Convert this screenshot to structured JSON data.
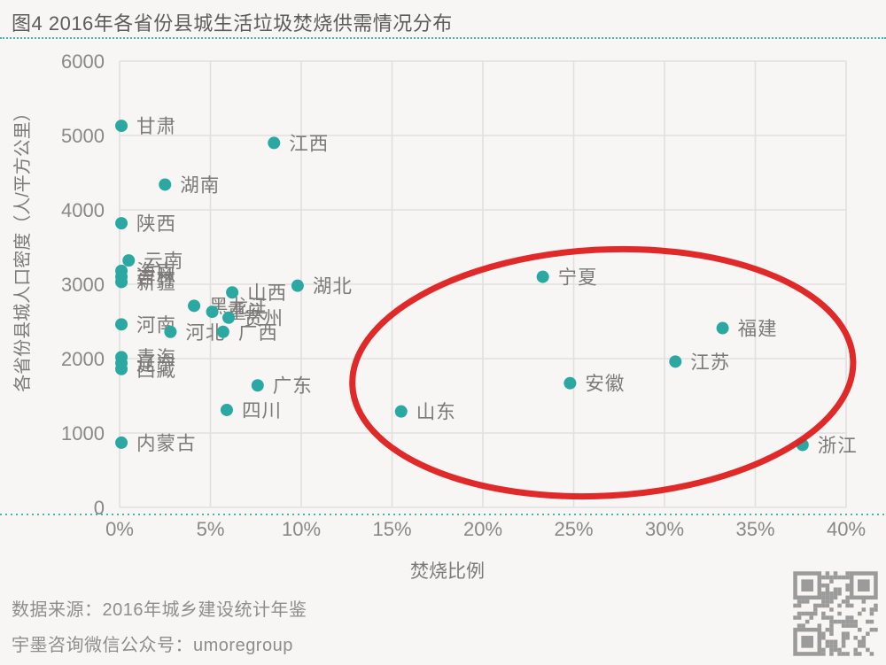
{
  "header": {
    "title": "图4 2016年各省份县城生活垃圾焚烧供需情况分布"
  },
  "footer": {
    "source": "数据来源：2016年城乡建设统计年鉴",
    "wechat": "宇墨咨询微信公众号：umoregroup"
  },
  "icons": {
    "qr_code": "qr-code"
  },
  "colors": {
    "background": "#F7F6F4",
    "dot": "#2BA8A1",
    "grid": "#E2E0DE",
    "tick_text": "#8A8886",
    "label_text": "#7C7A78",
    "axis_title": "#7C7A78",
    "title_text": "#5B5B5B",
    "dotted_rule": "#45B5AE",
    "highlight_red": "#DE1E1E",
    "footer_text": "#8F8D8B",
    "qr": "#9B9B9B"
  },
  "chart_data": {
    "type": "scatter",
    "title": "图4 2016年各省份县城生活垃圾焚烧供需情况分布",
    "xlabel": "焚烧比例",
    "ylabel": "各省份县城人口密度（人/平方公里）",
    "xlim": [
      0,
      40
    ],
    "ylim": [
      0,
      6000
    ],
    "x_unit": "%",
    "grid": true,
    "legend": "none",
    "x_ticks": [
      0,
      5,
      10,
      15,
      20,
      25,
      30,
      35,
      40
    ],
    "x_tick_labels": [
      "0%",
      "5%",
      "10%",
      "15%",
      "20%",
      "25%",
      "30%",
      "35%",
      "40%"
    ],
    "y_ticks": [
      0,
      1000,
      2000,
      3000,
      4000,
      5000,
      6000
    ],
    "y_tick_labels": [
      "0",
      "1000",
      "2000",
      "3000",
      "4000",
      "5000",
      "6000"
    ],
    "points": [
      {
        "name": "甘肃",
        "x": 0.1,
        "y": 5130,
        "circled": false
      },
      {
        "name": "江西",
        "x": 8.5,
        "y": 4900,
        "circled": false
      },
      {
        "name": "湖南",
        "x": 2.5,
        "y": 4340,
        "circled": false
      },
      {
        "name": "陕西",
        "x": 0.1,
        "y": 3820,
        "circled": false
      },
      {
        "name": "云南",
        "x": 0.5,
        "y": 3320,
        "circled": false
      },
      {
        "name": "海南",
        "x": 0.1,
        "y": 3180,
        "circled": false
      },
      {
        "name": "吉林",
        "x": 0.1,
        "y": 3100,
        "circled": false
      },
      {
        "name": "新疆",
        "x": 0.1,
        "y": 3030,
        "circled": false
      },
      {
        "name": "湖北",
        "x": 9.8,
        "y": 2980,
        "circled": false
      },
      {
        "name": "山西",
        "x": 6.2,
        "y": 2890,
        "circled": false
      },
      {
        "name": "黑龙江",
        "x": 4.1,
        "y": 2710,
        "circled": false
      },
      {
        "name": "重庆",
        "x": 5.1,
        "y": 2630,
        "circled": false
      },
      {
        "name": "贵州",
        "x": 6.0,
        "y": 2550,
        "circled": false
      },
      {
        "name": "河南",
        "x": 0.1,
        "y": 2460,
        "circled": false
      },
      {
        "name": "河北",
        "x": 2.8,
        "y": 2360,
        "circled": false
      },
      {
        "name": "广西",
        "x": 5.7,
        "y": 2360,
        "circled": false
      },
      {
        "name": "青海",
        "x": 0.1,
        "y": 2020,
        "circled": false
      },
      {
        "name": "辽宁",
        "x": 0.1,
        "y": 1940,
        "circled": false
      },
      {
        "name": "西藏",
        "x": 0.1,
        "y": 1860,
        "circled": false
      },
      {
        "name": "广东",
        "x": 7.6,
        "y": 1640,
        "circled": false
      },
      {
        "name": "四川",
        "x": 5.9,
        "y": 1310,
        "circled": false
      },
      {
        "name": "内蒙古",
        "x": 0.1,
        "y": 870,
        "circled": false
      },
      {
        "name": "宁夏",
        "x": 23.3,
        "y": 3100,
        "circled": true
      },
      {
        "name": "福建",
        "x": 33.2,
        "y": 2410,
        "circled": true
      },
      {
        "name": "江苏",
        "x": 30.6,
        "y": 1960,
        "circled": true
      },
      {
        "name": "安徽",
        "x": 24.8,
        "y": 1670,
        "circled": true
      },
      {
        "name": "山东",
        "x": 15.5,
        "y": 1290,
        "circled": true
      },
      {
        "name": "浙江",
        "x": 37.6,
        "y": 840,
        "circled": true
      }
    ],
    "highlight_ellipse": {
      "cx": 26.6,
      "cy": 1810,
      "rx": 13.8,
      "ry": 1655,
      "rotation_deg": -3,
      "stroke_width": 7
    }
  }
}
